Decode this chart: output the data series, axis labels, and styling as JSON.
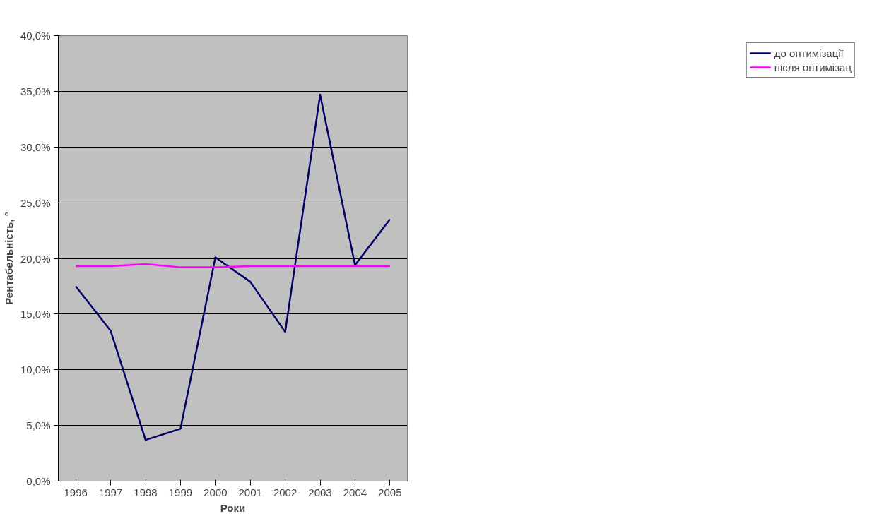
{
  "chart_data": {
    "type": "line",
    "xlabel": "Роки",
    "ylabel": "Рентабельність, °",
    "categories": [
      "1996",
      "1997",
      "1998",
      "1999",
      "2000",
      "2001",
      "2002",
      "2003",
      "2004",
      "2005"
    ],
    "series": [
      {
        "name": "до оптимізації",
        "color": "#000066",
        "values": [
          0.175,
          0.135,
          0.037,
          0.047,
          0.201,
          0.179,
          0.134,
          0.347,
          0.194,
          0.235
        ]
      },
      {
        "name": "після оптимізац",
        "color": "#ff00ff",
        "values": [
          0.193,
          0.193,
          0.195,
          0.192,
          0.192,
          0.193,
          0.193,
          0.193,
          0.193,
          0.193
        ]
      }
    ],
    "ylim": [
      0,
      0.4
    ],
    "yticks": [
      {
        "value": 0,
        "label": "0,0%"
      },
      {
        "value": 0.05,
        "label": "5,0%"
      },
      {
        "value": 0.1,
        "label": "10,0%"
      },
      {
        "value": 0.15,
        "label": "15,0%"
      },
      {
        "value": 0.2,
        "label": "20,0%"
      },
      {
        "value": 0.25,
        "label": "25,0%"
      },
      {
        "value": 0.3,
        "label": "30,0%"
      },
      {
        "value": 0.35,
        "label": "35,0%"
      },
      {
        "value": 0.4,
        "label": "40,0%"
      }
    ],
    "grid": "y",
    "legend": "right",
    "marker": "none",
    "line_style": "solid"
  }
}
